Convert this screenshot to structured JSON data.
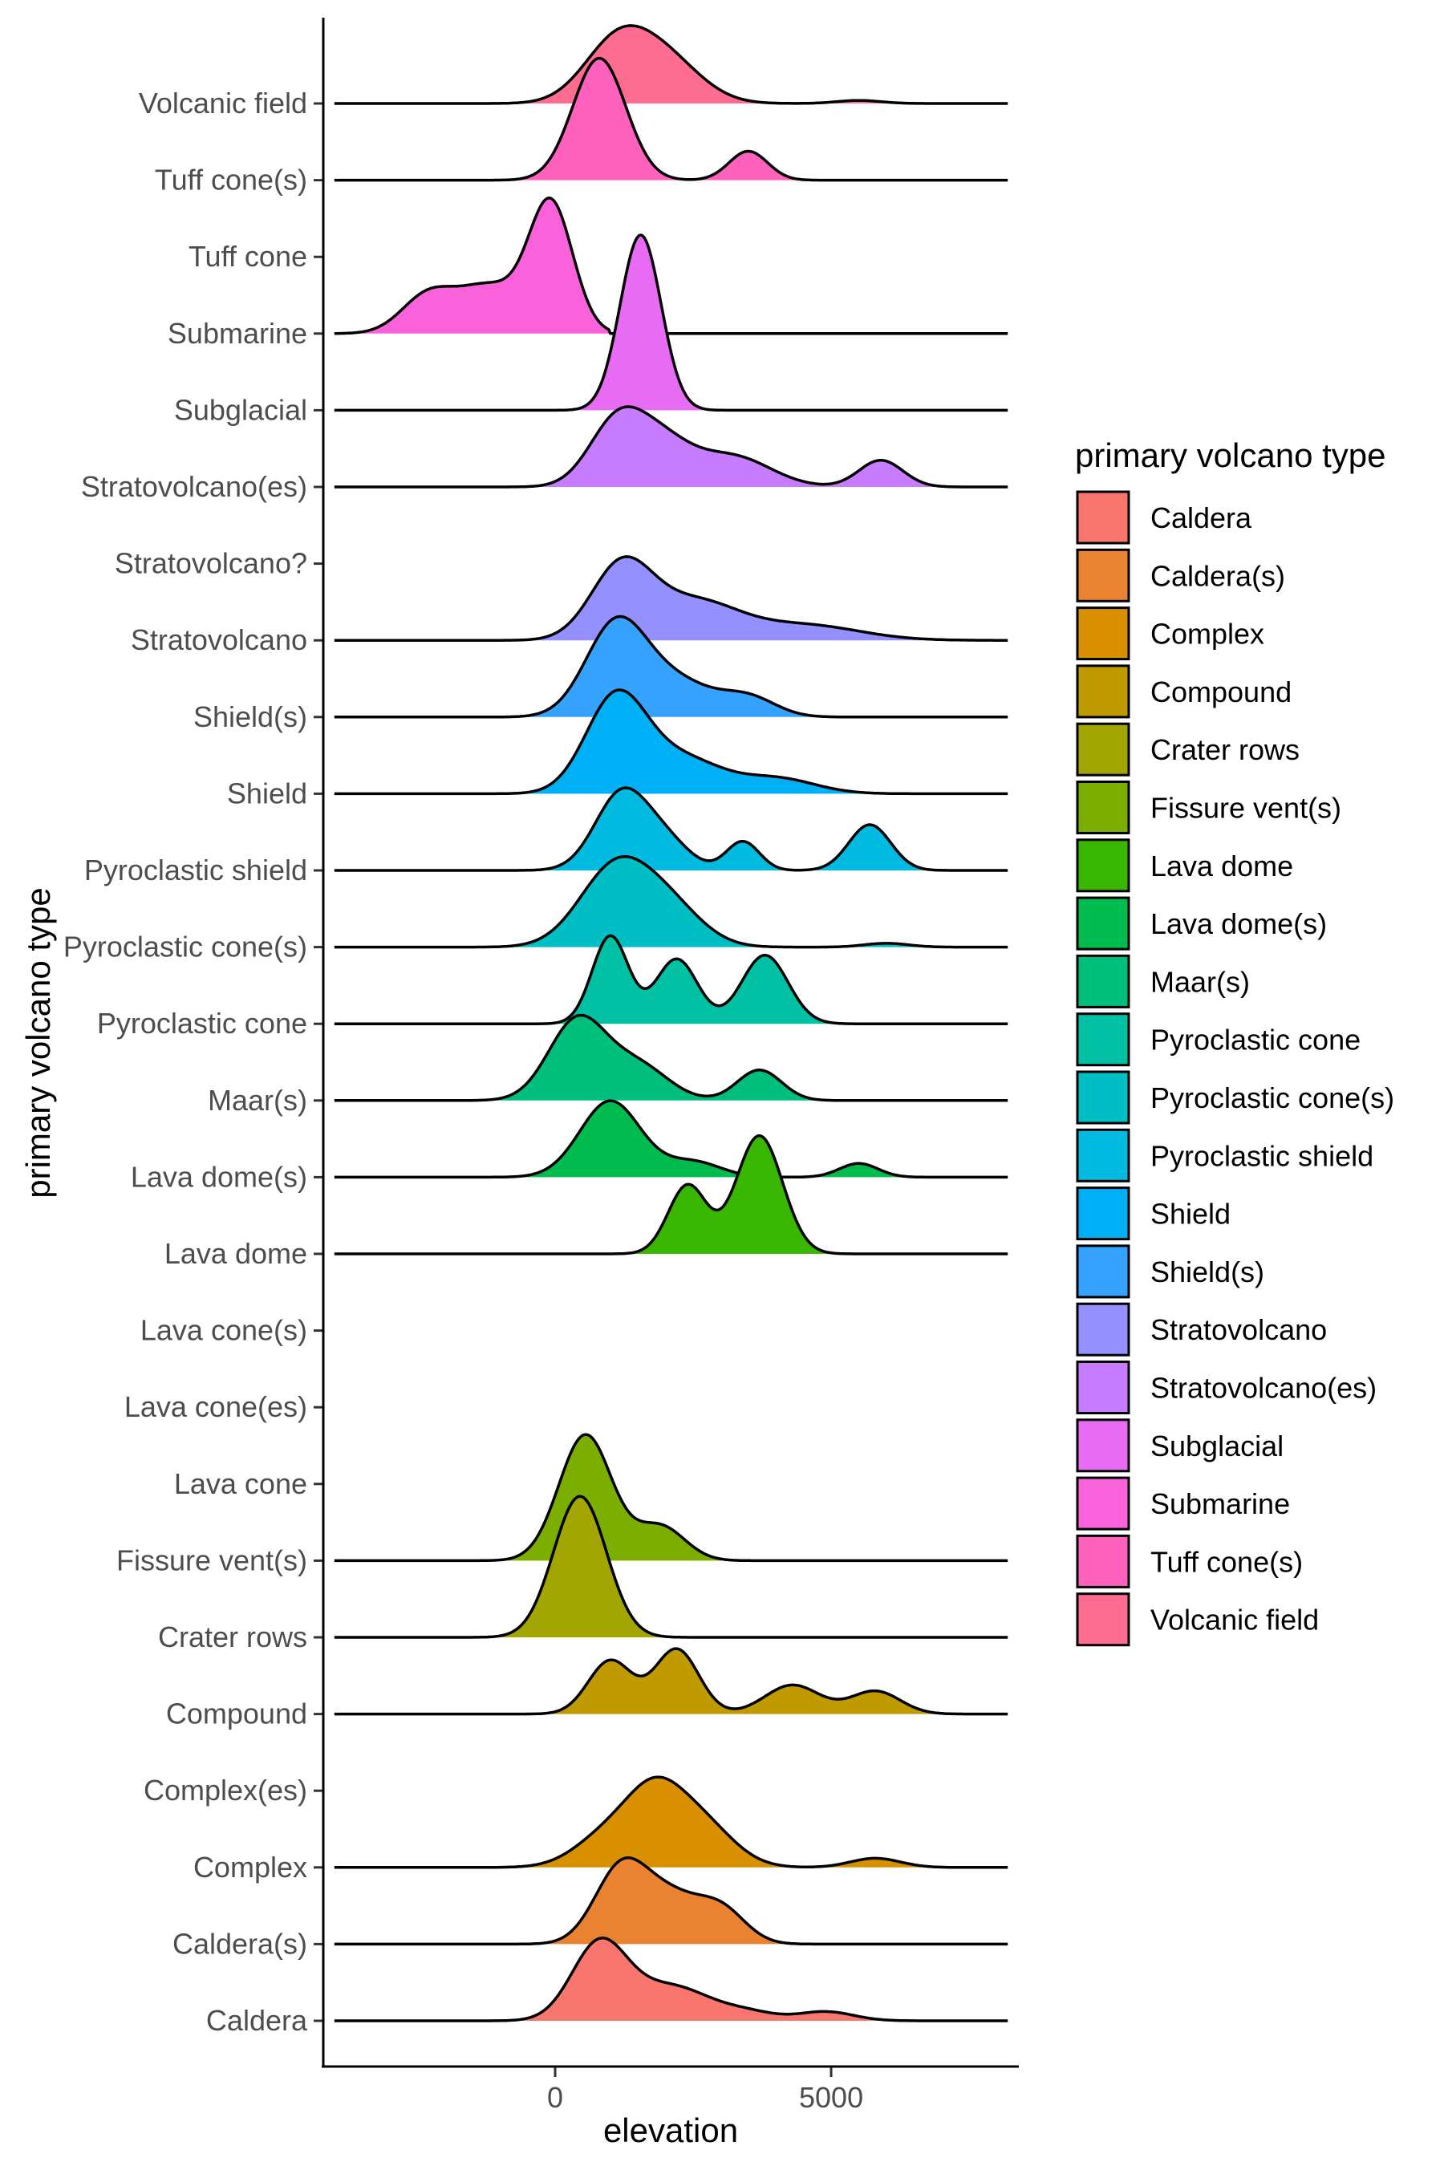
{
  "chart_data": {
    "type": "ridgeline",
    "xlabel": "elevation",
    "ylabel": "primary volcano type",
    "xlim": [
      -4200,
      8400
    ],
    "x_ticks": [
      0,
      5000
    ],
    "grid": false,
    "legend": {
      "title": "primary volcano type",
      "position": "right"
    },
    "categories": [
      "Caldera",
      "Caldera(s)",
      "Complex",
      "Complex(es)",
      "Compound",
      "Crater rows",
      "Fissure vent(s)",
      "Lava cone",
      "Lava cone(es)",
      "Lava cone(s)",
      "Lava dome",
      "Lava dome(s)",
      "Maar(s)",
      "Pyroclastic cone",
      "Pyroclastic cone(s)",
      "Pyroclastic shield",
      "Shield",
      "Shield(s)",
      "Stratovolcano",
      "Stratovolcano?",
      "Stratovolcano(es)",
      "Subglacial",
      "Submarine",
      "Tuff cone",
      "Tuff cone(s)",
      "Volcanic field"
    ],
    "series": [
      {
        "name": "Caldera",
        "color": "#F8766D",
        "range": [
          -4000,
          8200
        ],
        "peaks": [
          [
            800,
            500,
            1.0
          ],
          [
            2100,
            700,
            0.45
          ],
          [
            3500,
            500,
            0.1
          ],
          [
            4900,
            500,
            0.12
          ]
        ]
      },
      {
        "name": "Caldera(s)",
        "color": "#EA8331",
        "range": [
          -4000,
          8200
        ],
        "peaks": [
          [
            1200,
            480,
            1.0
          ],
          [
            2100,
            500,
            0.55
          ],
          [
            3000,
            450,
            0.45
          ]
        ]
      },
      {
        "name": "Complex",
        "color": "#D89000",
        "range": [
          -4000,
          8200
        ],
        "peaks": [
          [
            1000,
            600,
            0.45
          ],
          [
            1800,
            500,
            0.75
          ],
          [
            2600,
            600,
            0.6
          ],
          [
            5800,
            450,
            0.12
          ]
        ]
      },
      {
        "name": "Compound",
        "color": "#C09B00",
        "range": [
          -4000,
          8200
        ],
        "peaks": [
          [
            1000,
            400,
            0.7
          ],
          [
            2200,
            400,
            0.85
          ],
          [
            4300,
            500,
            0.38
          ],
          [
            5800,
            450,
            0.3
          ]
        ]
      },
      {
        "name": "Crater rows",
        "color": "#A3A500",
        "range": [
          -4000,
          8200
        ],
        "peaks": [
          [
            450,
            480,
            1.85
          ]
        ]
      },
      {
        "name": "Fissure vent(s)",
        "color": "#7CAE00",
        "range": [
          -4000,
          8200
        ],
        "peaks": [
          [
            550,
            480,
            1.65
          ],
          [
            1900,
            450,
            0.45
          ]
        ]
      },
      {
        "name": "Lava dome",
        "color": "#39B600",
        "range": [
          -4000,
          8200
        ],
        "peaks": [
          [
            2400,
            350,
            0.9
          ],
          [
            3700,
            420,
            1.55
          ]
        ]
      },
      {
        "name": "Lava dome(s)",
        "color": "#00BB4E",
        "range": [
          -4000,
          8200
        ],
        "peaks": [
          [
            1000,
            550,
            1.0
          ],
          [
            2500,
            500,
            0.2
          ],
          [
            5500,
            350,
            0.18
          ]
        ]
      },
      {
        "name": "Maar(s)",
        "color": "#00BF7D",
        "range": [
          -4000,
          8200
        ],
        "peaks": [
          [
            400,
            520,
            1.05
          ],
          [
            1500,
            550,
            0.45
          ],
          [
            3700,
            400,
            0.4
          ]
        ]
      },
      {
        "name": "Pyroclastic cone",
        "color": "#00C1A3",
        "range": [
          -4000,
          8200
        ],
        "peaks": [
          [
            1000,
            330,
            1.15
          ],
          [
            2200,
            380,
            0.85
          ],
          [
            3800,
            420,
            0.9
          ]
        ]
      },
      {
        "name": "Pyroclastic cone(s)",
        "color": "#00BFC4",
        "range": [
          -4000,
          8200
        ],
        "peaks": [
          [
            1100,
            650,
            1.05
          ],
          [
            2100,
            600,
            0.45
          ],
          [
            6000,
            400,
            0.05
          ]
        ]
      },
      {
        "name": "Pyroclastic shield",
        "color": "#00BAE0",
        "range": [
          -4000,
          8200
        ],
        "peaks": [
          [
            1200,
            480,
            1.0
          ],
          [
            2000,
            450,
            0.35
          ],
          [
            3400,
            300,
            0.38
          ],
          [
            5700,
            380,
            0.6
          ]
        ]
      },
      {
        "name": "Shield",
        "color": "#00B0F6",
        "range": [
          -4000,
          8200
        ],
        "peaks": [
          [
            1100,
            550,
            1.25
          ],
          [
            2300,
            700,
            0.45
          ],
          [
            4000,
            700,
            0.2
          ]
        ]
      },
      {
        "name": "Shield(s)",
        "color": "#35A2FF",
        "range": [
          -4000,
          8200
        ],
        "peaks": [
          [
            1100,
            550,
            1.2
          ],
          [
            2200,
            650,
            0.45
          ],
          [
            3500,
            500,
            0.25
          ]
        ]
      },
      {
        "name": "Stratovolcano",
        "color": "#9590FF",
        "range": [
          -4000,
          8200
        ],
        "peaks": [
          [
            1200,
            550,
            0.95
          ],
          [
            2500,
            800,
            0.5
          ],
          [
            4500,
            1000,
            0.2
          ]
        ]
      },
      {
        "name": "Stratovolcano?",
        "color": "#C77CFF",
        "range": [
          -4000,
          8200
        ],
        "peaks": []
      },
      {
        "name": "Stratovolcano(es)",
        "color": "#C77CFF",
        "range": [
          -4000,
          8200
        ],
        "peaks": [
          [
            1100,
            500,
            0.8
          ],
          [
            1900,
            550,
            0.55
          ],
          [
            3200,
            700,
            0.4
          ],
          [
            5900,
            400,
            0.35
          ]
        ]
      },
      {
        "name": "Subglacial",
        "color": "#E76BF3",
        "range": [
          -4000,
          8200
        ],
        "peaks": [
          [
            1550,
            370,
            2.3
          ]
        ]
      },
      {
        "name": "Submarine",
        "color": "#FA62DB",
        "range": [
          -4000,
          8200
        ],
        "clip_high": 1000,
        "peaks": [
          [
            -2300,
            480,
            0.5
          ],
          [
            -1200,
            550,
            0.6
          ],
          [
            -80,
            400,
            1.7
          ]
        ]
      },
      {
        "name": "Tuff cone",
        "color": "#FA62DB",
        "range": [
          -4000,
          8200
        ],
        "peaks": []
      },
      {
        "name": "Tuff cone(s)",
        "color": "#FF62BC",
        "range": [
          -4000,
          8200
        ],
        "peaks": [
          [
            800,
            480,
            1.6
          ],
          [
            3500,
            350,
            0.38
          ]
        ]
      },
      {
        "name": "Volcanic field",
        "color": "#FF6C91",
        "range": [
          -4000,
          8200
        ],
        "peaks": [
          [
            1100,
            600,
            0.75
          ],
          [
            2000,
            650,
            0.55
          ],
          [
            5500,
            400,
            0.04
          ]
        ]
      }
    ]
  }
}
